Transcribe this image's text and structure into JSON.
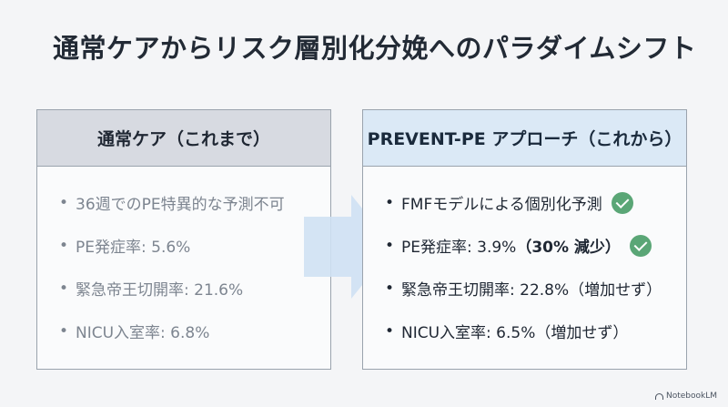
{
  "title": "通常ケアからリスク層別化分娩へのパラダイムシフト",
  "left_panel": {
    "header": "通常ケア（これまで）",
    "items": [
      "36週でのPE特異的な予測不可",
      "PE発症率: 5.6%",
      "緊急帝王切開率: 21.6%",
      "NICU入室率: 6.8%"
    ]
  },
  "right_panel": {
    "header": "PREVENT-PE アプローチ（これから）",
    "items": [
      {
        "text": "FMFモデルによる個別化予測",
        "bold_suffix": "",
        "check": true
      },
      {
        "text": "PE発症率: 3.9%",
        "bold_suffix": "（30% 減少）",
        "check": true
      },
      {
        "text": "緊急帝王切開率: 22.8%（増加せず）",
        "bold_suffix": "",
        "check": false
      },
      {
        "text": "NICU入室率: 6.5%（増加せず）",
        "bold_suffix": "",
        "check": false
      }
    ]
  },
  "bullet": "•",
  "brand": "NotebookLM",
  "colors": {
    "check": "#5aa676",
    "arrow": "#cfe1f3",
    "right_header_bg": "#dbe9f6",
    "left_header_bg": "#d7dae1"
  },
  "icons": {
    "check": "check-circle-icon",
    "arrow": "arrow-right-icon",
    "brand": "notebooklm-logo-icon"
  }
}
